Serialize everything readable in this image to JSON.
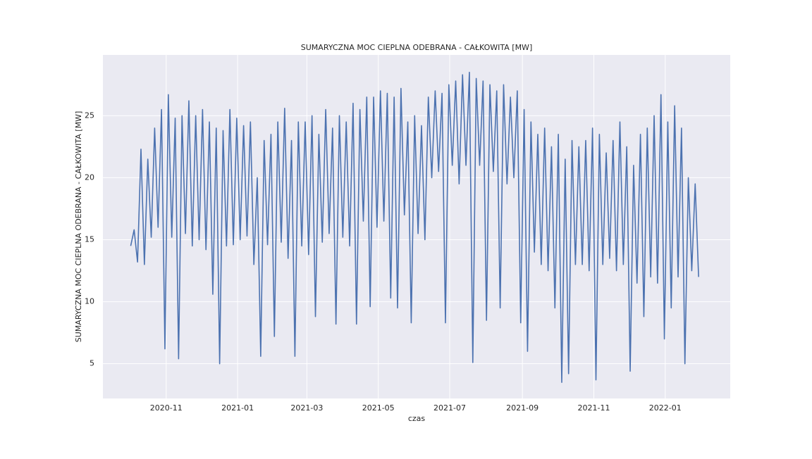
{
  "chart_data": {
    "type": "line",
    "title": "SUMARYCZNA MOC CIEPLNA ODEBRANA - CAŁKOWITA [MW]",
    "xlabel": "czas",
    "ylabel": "SUMARYCZNA MOC CIEPLNA ODEBRANA - CAŁKOWITA [MW]",
    "x": [
      2020.75,
      2020.758,
      2020.766,
      2020.774,
      2020.782,
      2020.79,
      2020.798,
      2020.806,
      2020.814,
      2020.822,
      2020.83,
      2020.838,
      2020.846,
      2020.854,
      2020.862,
      2020.87,
      2020.878,
      2020.886,
      2020.894,
      2020.902,
      2020.91,
      2020.918,
      2020.926,
      2020.934,
      2020.942,
      2020.95,
      2020.958,
      2020.966,
      2020.974,
      2020.982,
      2020.99,
      2020.998,
      2021.006,
      2021.014,
      2021.022,
      2021.03,
      2021.038,
      2021.046,
      2021.054,
      2021.062,
      2021.07,
      2021.078,
      2021.086,
      2021.094,
      2021.102,
      2021.11,
      2021.118,
      2021.126,
      2021.134,
      2021.142,
      2021.15,
      2021.158,
      2021.166,
      2021.174,
      2021.182,
      2021.19,
      2021.198,
      2021.206,
      2021.214,
      2021.222,
      2021.23,
      2021.238,
      2021.246,
      2021.254,
      2021.262,
      2021.27,
      2021.278,
      2021.286,
      2021.294,
      2021.302,
      2021.31,
      2021.318,
      2021.326,
      2021.334,
      2021.342,
      2021.35,
      2021.358,
      2021.366,
      2021.374,
      2021.382,
      2021.39,
      2021.398,
      2021.406,
      2021.414,
      2021.422,
      2021.43,
      2021.438,
      2021.446,
      2021.454,
      2021.462,
      2021.47,
      2021.478,
      2021.486,
      2021.494,
      2021.502,
      2021.51,
      2021.518,
      2021.526,
      2021.534,
      2021.542,
      2021.55,
      2021.558,
      2021.566,
      2021.574,
      2021.582,
      2021.59,
      2021.598,
      2021.606,
      2021.614,
      2021.622,
      2021.63,
      2021.638,
      2021.646,
      2021.654,
      2021.662,
      2021.67,
      2021.678,
      2021.686,
      2021.694,
      2021.702,
      2021.71,
      2021.718,
      2021.726,
      2021.734,
      2021.742,
      2021.75,
      2021.758,
      2021.766,
      2021.774,
      2021.782,
      2021.79,
      2021.798,
      2021.806,
      2021.814,
      2021.822,
      2021.83,
      2021.838,
      2021.846,
      2021.854,
      2021.862,
      2021.87,
      2021.878,
      2021.886,
      2021.894,
      2021.902,
      2021.91,
      2021.918,
      2021.926,
      2021.934,
      2021.942,
      2021.95,
      2021.958,
      2021.966,
      2021.974,
      2021.982,
      2021.99,
      2021.998,
      2022.006,
      2022.014,
      2022.022,
      2022.03,
      2022.038,
      2022.046,
      2022.054,
      2022.062,
      2022.07,
      2022.078
    ],
    "series": [
      {
        "color": "#4c72b0",
        "values": [
          14.5,
          15.8,
          13.2,
          22.3,
          13.0,
          21.5,
          15.2,
          24.0,
          16.0,
          25.5,
          6.2,
          26.7,
          15.2,
          24.8,
          5.4,
          25.0,
          15.5,
          26.2,
          14.5,
          25.0,
          15.0,
          25.5,
          14.2,
          24.5,
          10.6,
          24.0,
          5.0,
          23.8,
          14.5,
          25.5,
          14.6,
          24.8,
          15.0,
          24.2,
          15.3,
          24.5,
          13.0,
          20.0,
          5.6,
          23.0,
          14.6,
          23.5,
          7.2,
          24.5,
          14.8,
          25.6,
          13.5,
          23.0,
          5.6,
          24.5,
          14.5,
          24.5,
          13.8,
          25.0,
          8.8,
          23.5,
          14.8,
          25.5,
          15.5,
          24.0,
          8.2,
          25.0,
          15.2,
          24.5,
          14.5,
          26.0,
          8.2,
          25.5,
          16.5,
          26.5,
          9.6,
          26.5,
          16.0,
          27.0,
          16.5,
          26.8,
          10.3,
          26.5,
          9.5,
          27.2,
          17.0,
          24.5,
          8.3,
          25.0,
          15.5,
          24.2,
          15.0,
          26.5,
          20.0,
          27.0,
          20.5,
          26.8,
          8.3,
          27.5,
          21.0,
          27.8,
          19.5,
          28.3,
          21.0,
          28.5,
          5.1,
          28.0,
          21.0,
          27.8,
          8.5,
          27.5,
          20.5,
          27.0,
          9.5,
          27.5,
          19.5,
          26.5,
          20.0,
          27.0,
          8.3,
          25.5,
          6.0,
          24.5,
          14.0,
          23.5,
          13.0,
          24.0,
          12.5,
          22.5,
          9.5,
          23.5,
          3.5,
          21.5,
          4.2,
          23.0,
          13.0,
          22.5,
          13.0,
          23.0,
          12.5,
          24.0,
          3.7,
          23.5,
          13.0,
          22.0,
          13.5,
          23.0,
          12.5,
          24.5,
          13.0,
          22.5,
          4.4,
          21.0,
          11.5,
          23.5,
          8.8,
          24.0,
          12.0,
          25.0,
          11.5,
          26.7,
          7.0,
          24.5,
          9.5,
          25.8,
          12.0,
          24.0,
          5.0,
          20.0,
          12.5,
          19.5,
          12.0
        ]
      }
    ],
    "xlim": [
      2020.685,
      2022.152
    ],
    "xticks": [
      {
        "value": 2020.833,
        "label": "2020-11"
      },
      {
        "value": 2021.0,
        "label": "2021-01"
      },
      {
        "value": 2021.162,
        "label": "2021-03"
      },
      {
        "value": 2021.329,
        "label": "2021-05"
      },
      {
        "value": 2021.496,
        "label": "2021-07"
      },
      {
        "value": 2021.666,
        "label": "2021-09"
      },
      {
        "value": 2021.833,
        "label": "2021-11"
      },
      {
        "value": 2022.0,
        "label": "2022-01"
      }
    ],
    "ylim": [
      2.2,
      29.9
    ],
    "yticks": [
      5,
      10,
      15,
      20,
      25
    ],
    "grid": true
  }
}
